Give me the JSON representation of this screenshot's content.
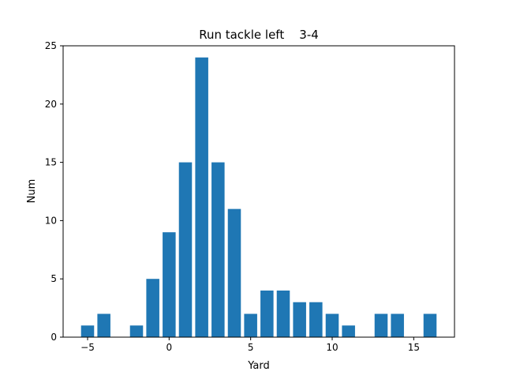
{
  "chart_data": {
    "type": "bar",
    "title": "Run tackle left    3-4",
    "xlabel": "Yard",
    "ylabel": "Num",
    "x": [
      -5,
      -4,
      -2,
      -1,
      0,
      1,
      2,
      3,
      4,
      5,
      6,
      7,
      8,
      9,
      10,
      11,
      13,
      14,
      16
    ],
    "values": [
      1,
      2,
      1,
      5,
      9,
      15,
      24,
      15,
      11,
      2,
      4,
      4,
      3,
      3,
      2,
      1,
      2,
      2,
      2
    ],
    "xlim": [
      -6.5,
      17.5
    ],
    "ylim": [
      0,
      25
    ],
    "xticks": [
      -5,
      0,
      5,
      10,
      15
    ],
    "yticks": [
      0,
      5,
      10,
      15,
      20,
      25
    ],
    "grid": false,
    "bar_color": "#1f77b4"
  }
}
